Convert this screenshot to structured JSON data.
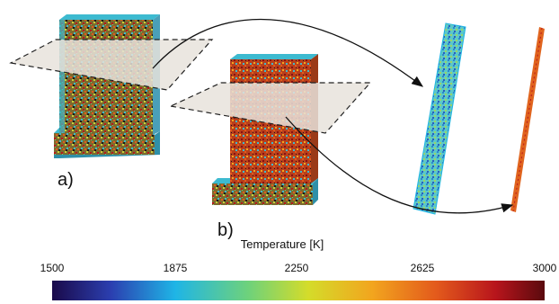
{
  "panel_labels": {
    "a": "a)",
    "b": "b)"
  },
  "colorbar": {
    "title": "Temperature [K]",
    "min": 1500,
    "max": 3000,
    "ticks": [
      "1500",
      "1875",
      "2250",
      "2625",
      "3000"
    ],
    "colormap": "jet",
    "stops": [
      "#1a0a4a",
      "#2b3fb0",
      "#1fb5e6",
      "#6fd27a",
      "#d4dc2a",
      "#f2a51e",
      "#e35a1c",
      "#b8151c",
      "#5a0a0e"
    ]
  },
  "colors": {
    "wall_a_dominant": "#8a7a3a",
    "wall_b_dominant": "#b8401c",
    "slice_a_dominant": "#5cc8c8",
    "slice_b_dominant": "#e0641e",
    "plane_fill": "#e8e3dc"
  }
}
